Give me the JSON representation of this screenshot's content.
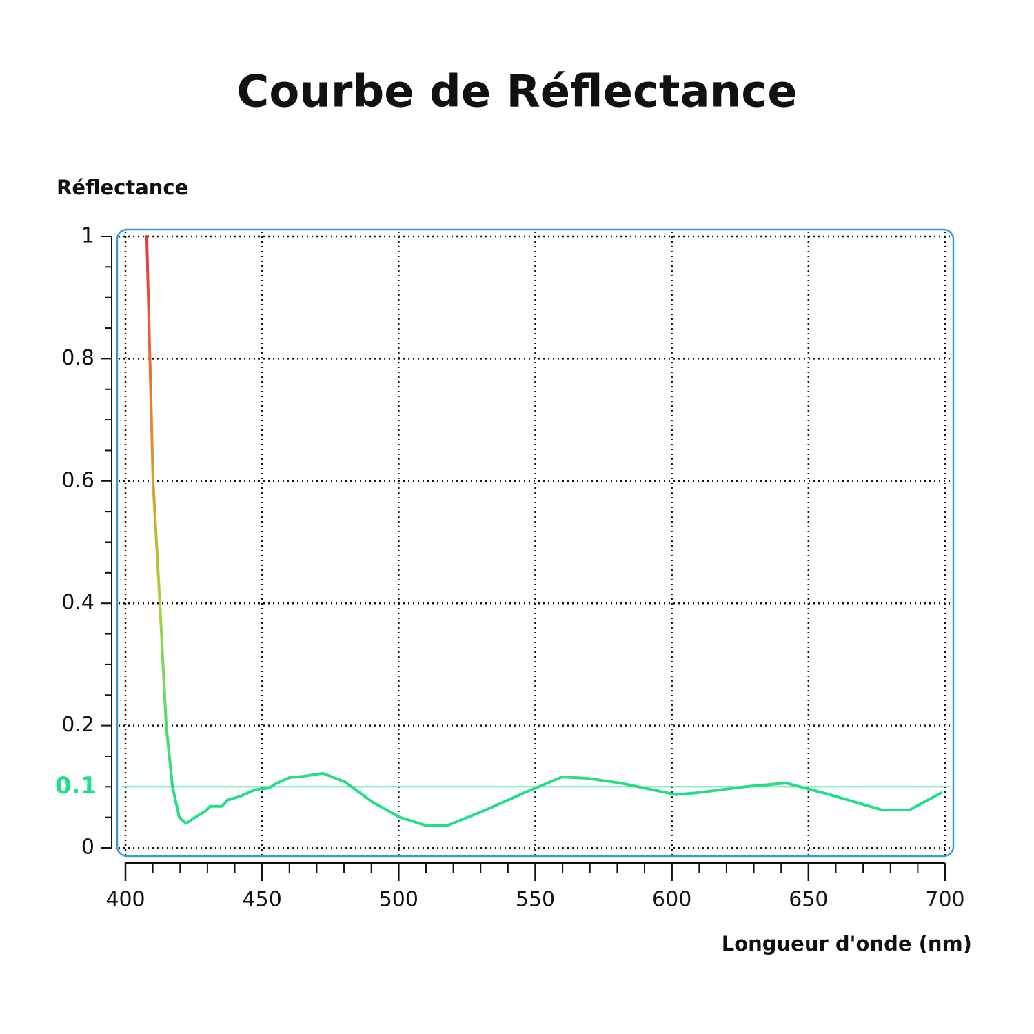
{
  "chart_data": {
    "type": "line",
    "title": "Courbe de Réflectance",
    "ylabel": "Réflectance",
    "xlabel": "Longueur d'onde (nm)",
    "xlim": [
      400,
      700
    ],
    "xticks": [
      400,
      450,
      500,
      550,
      600,
      650,
      700
    ],
    "xminorticks": [
      410,
      420,
      430,
      440,
      460,
      470,
      480,
      490,
      510,
      520,
      530,
      540,
      560,
      570,
      580,
      590,
      610,
      620,
      630,
      640,
      660,
      670,
      680,
      690
    ],
    "ylim": [
      0,
      1
    ],
    "yticks": [
      0,
      0.2,
      0.4,
      0.6,
      0.8,
      1
    ],
    "yminorticks": [
      0.05,
      0.1,
      0.15,
      0.25,
      0.3,
      0.35,
      0.45,
      0.5,
      0.55,
      0.65,
      0.7,
      0.75,
      0.85,
      0.9,
      0.95
    ],
    "hline": 0.1,
    "hline_color": "#22dd8a",
    "grid": true,
    "frame_color": "#3a9bd0",
    "colors": [
      "#e0383a",
      "#e8862e",
      "#a6d43a",
      "#22dd8a"
    ],
    "x": [
      407.8,
      410.1,
      412.6,
      414.9,
      417.2,
      419.7,
      422.2,
      425.5,
      429.2,
      431,
      435.3,
      437.3,
      442.4,
      447.4,
      452.5,
      455,
      460,
      465,
      472.2,
      480.3,
      490.4,
      500.5,
      510.5,
      518,
      530.8,
      545.9,
      559.8,
      568.7,
      581.2,
      601.4,
      609,
      626.7,
      641.8,
      657,
      677,
      687,
      698.5
    ],
    "values": [
      1.0,
      0.6,
      0.4,
      0.2,
      0.1,
      0.05,
      0.04,
      0.05,
      0.06,
      0.068,
      0.068,
      0.078,
      0.085,
      0.095,
      0.098,
      0.105,
      0.115,
      0.117,
      0.122,
      0.108,
      0.075,
      0.05,
      0.036,
      0.037,
      0.06,
      0.09,
      0.116,
      0.114,
      0.106,
      0.087,
      0.09,
      0.1,
      0.106,
      0.088,
      0.062,
      0.062,
      0.09
    ]
  }
}
